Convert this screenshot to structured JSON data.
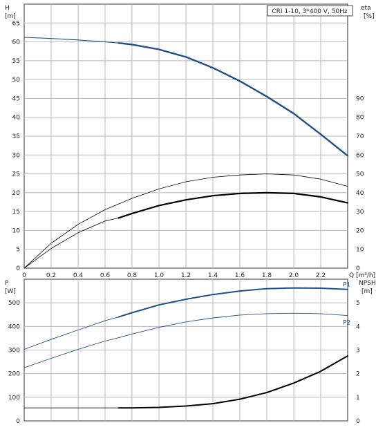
{
  "chart_data": [
    {
      "type": "line",
      "title": "CRI 1-10, 3*400 V, 50Hz",
      "x_axis": {
        "label": "Q [m³/h]",
        "range": [
          0,
          2.4
        ],
        "ticks": [
          0,
          0.2,
          0.4,
          0.6,
          0.8,
          1.0,
          1.2,
          1.4,
          1.6,
          1.8,
          2.0,
          2.2
        ],
        "tick_labels": [
          "0",
          "0.2",
          "0.4",
          "0.6",
          "0.8",
          "1.0",
          "1.2",
          "1.4",
          "1.6",
          "1.8",
          "2.0",
          "2.2"
        ],
        "end_label": "Q [m³/h]"
      },
      "y_left": {
        "label_line1": "H",
        "label_line2": "[m]",
        "range": [
          0,
          70
        ],
        "ticks": [
          0,
          5,
          10,
          15,
          20,
          25,
          30,
          35,
          40,
          45,
          50,
          55,
          60,
          65
        ]
      },
      "y_right": {
        "label_line1": "eta",
        "label_line2": "[%]",
        "range": [
          0,
          140
        ],
        "ticks": [
          0,
          10,
          20,
          30,
          40,
          50,
          60,
          70,
          80,
          90
        ]
      },
      "grid": true,
      "series": [
        {
          "axis": "left",
          "color": "#1f4e8c",
          "width_thin": 1.1,
          "width_thick": 2.4,
          "thick_from_x": 0.7,
          "x": [
            0,
            0.2,
            0.4,
            0.6,
            0.7,
            0.8,
            1.0,
            1.2,
            1.4,
            1.6,
            1.8,
            2.0,
            2.2,
            2.4
          ],
          "y": [
            61.2,
            60.9,
            60.5,
            60.0,
            59.7,
            59.3,
            58.0,
            56.0,
            53.1,
            49.6,
            45.5,
            41.0,
            35.5,
            29.8
          ]
        },
        {
          "axis": "left",
          "color": "#000000",
          "width_thin": 0.8,
          "width_thick": 0.8,
          "thick_from_x": 0.7,
          "x": [
            0,
            0.2,
            0.4,
            0.6,
            0.7,
            0.8,
            1.0,
            1.2,
            1.4,
            1.6,
            1.8,
            2.0,
            2.2,
            2.4
          ],
          "y": [
            0,
            6.6,
            11.6,
            15.5,
            17.0,
            18.5,
            21.0,
            22.9,
            24.1,
            24.7,
            25.0,
            24.7,
            23.6,
            21.7
          ]
        },
        {
          "axis": "left",
          "color": "#000000",
          "width_thin": 0.8,
          "width_thick": 2.2,
          "thick_from_x": 0.7,
          "x": [
            0,
            0.2,
            0.4,
            0.6,
            0.7,
            0.8,
            1.0,
            1.2,
            1.4,
            1.6,
            1.8,
            2.0,
            2.2,
            2.4
          ],
          "y": [
            0,
            5.2,
            9.4,
            12.5,
            13.3,
            14.5,
            16.6,
            18.1,
            19.2,
            19.8,
            20.0,
            19.8,
            18.9,
            17.3
          ]
        }
      ]
    },
    {
      "type": "line",
      "x_axis": {
        "range": [
          0,
          2.4
        ],
        "ticks": [
          0,
          0.2,
          0.4,
          0.6,
          0.8,
          1.0,
          1.2,
          1.4,
          1.6,
          1.8,
          2.0,
          2.2
        ]
      },
      "y_left": {
        "label_line1": "P",
        "label_line2": "[W]",
        "range": [
          0,
          600
        ],
        "ticks": [
          0,
          100,
          200,
          300,
          400,
          500
        ]
      },
      "y_right": {
        "label_line1": "NPSH",
        "label_line2": "[m]",
        "range": [
          0,
          6
        ],
        "ticks": [
          0,
          1,
          2,
          3,
          4,
          5
        ]
      },
      "grid": true,
      "series": [
        {
          "name": "P1",
          "axis": "left",
          "color": "#1f4e8c",
          "width_thin": 0.9,
          "width_thick": 2.0,
          "thick_from_x": 0.7,
          "x": [
            0,
            0.2,
            0.4,
            0.6,
            0.7,
            0.8,
            1.0,
            1.2,
            1.4,
            1.6,
            1.8,
            2.0,
            2.2,
            2.4
          ],
          "y": [
            303,
            345,
            385,
            424,
            440,
            458,
            491,
            515,
            535,
            550,
            560,
            563,
            562,
            557
          ]
        },
        {
          "name": "P2",
          "axis": "left",
          "color": "#1f4e8c",
          "width_thin": 0.9,
          "width_thick": 0.9,
          "thick_from_x": 0.7,
          "x": [
            0,
            0.2,
            0.4,
            0.6,
            0.7,
            0.8,
            1.0,
            1.2,
            1.4,
            1.6,
            1.8,
            2.0,
            2.2,
            2.4
          ],
          "y": [
            225,
            265,
            303,
            338,
            352,
            368,
            396,
            419,
            436,
            448,
            454,
            456,
            454,
            446
          ]
        },
        {
          "axis": "right",
          "color": "#000000",
          "width_thin": 0.9,
          "width_thick": 2.0,
          "thick_from_x": 0.7,
          "x": [
            0,
            0.2,
            0.4,
            0.6,
            0.7,
            0.8,
            1.0,
            1.2,
            1.4,
            1.6,
            1.8,
            2.0,
            2.2,
            2.4
          ],
          "y": [
            0.55,
            0.55,
            0.55,
            0.55,
            0.55,
            0.55,
            0.57,
            0.63,
            0.73,
            0.92,
            1.2,
            1.6,
            2.1,
            2.75
          ]
        }
      ]
    }
  ]
}
